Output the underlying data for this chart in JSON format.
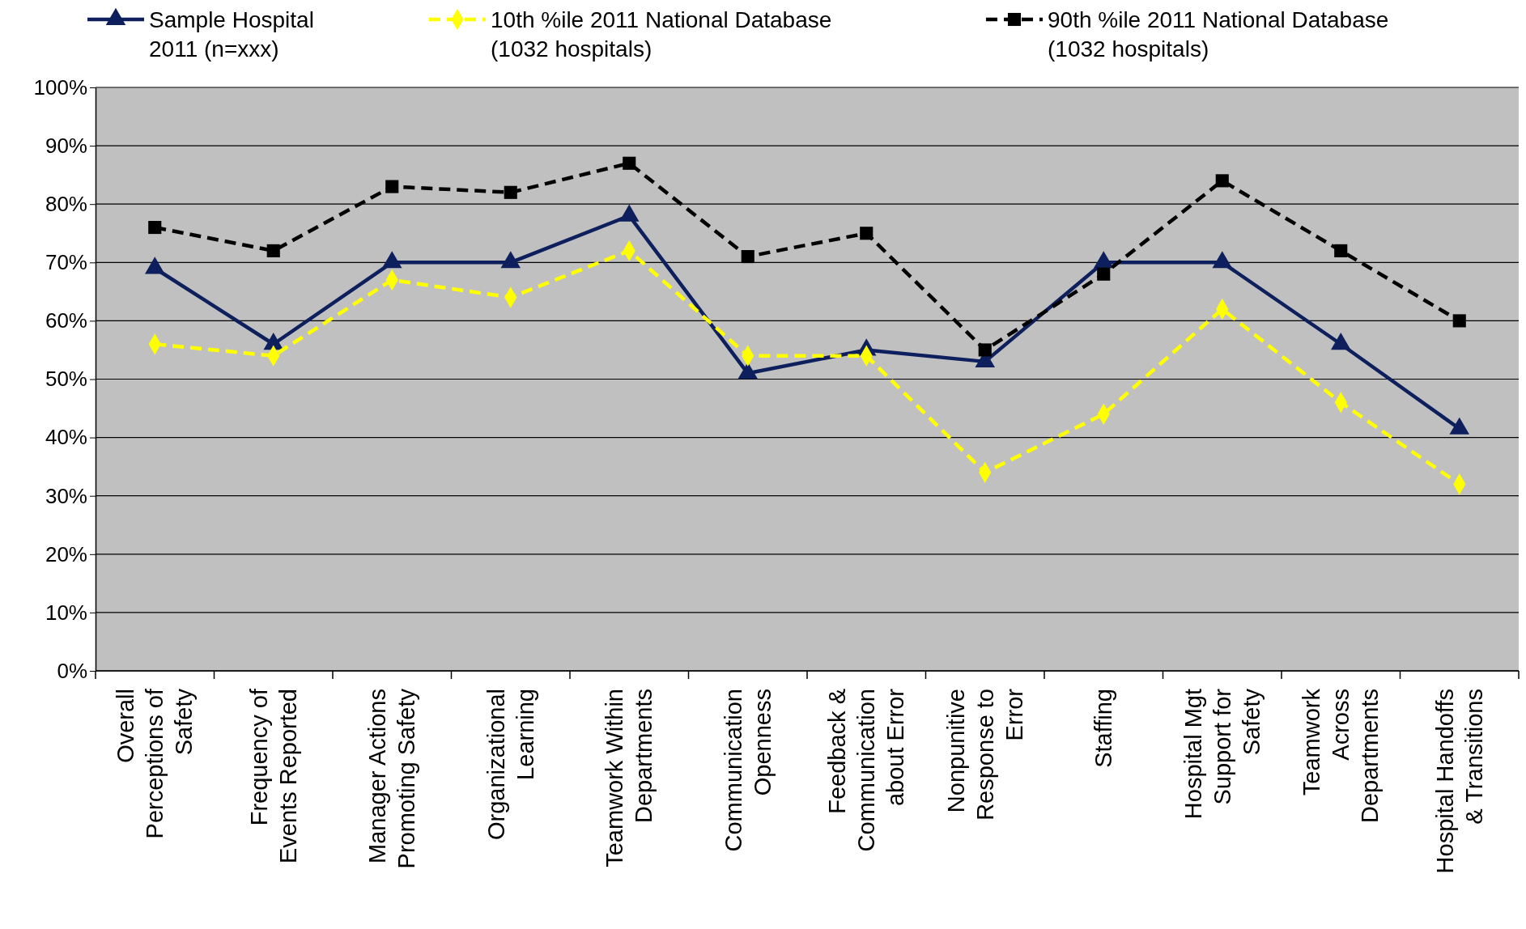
{
  "chart_data": {
    "type": "line",
    "categories": [
      "Overall\nPerceptions of\nSafety",
      "Frequency of\nEvents Reported",
      "Manager Actions\nPromoting  Safety",
      "Organizational\nLearning",
      "Teamwork Within\nDepartments",
      "Communication\nOpenness",
      "Feedback &\nCommunication\nabout Error",
      "Nonpunitive\nResponse to\nError",
      "Staffing",
      "Hospital Mgt\nSupport for\nSafety",
      "Teamwork\nAcross\nDepartments",
      "Hospital Handoffs\n& Transitions"
    ],
    "series": [
      {
        "name": "Sample Hospital\n2011 (n=xxx)",
        "color": "#0d1f5c",
        "marker": "triangle",
        "line_style": "solid",
        "values": [
          69,
          56,
          70,
          70,
          78,
          51,
          55,
          53,
          70,
          70,
          56,
          41.5
        ]
      },
      {
        "name": "10th %ile 2011 National Database\n(1032 hospitals)",
        "color": "#ffff00",
        "marker": "diamond",
        "line_style": "dashed",
        "values": [
          56,
          54,
          67,
          64,
          72,
          54,
          54,
          34,
          44,
          62,
          46,
          32
        ]
      },
      {
        "name": "90th %ile 2011 National Database\n(1032 hospitals)",
        "color": "#000000",
        "marker": "square",
        "line_style": "dashed",
        "values": [
          76,
          72,
          83,
          82,
          87,
          71,
          75,
          55,
          68,
          84,
          72,
          60
        ]
      }
    ],
    "ylim": [
      0,
      100
    ],
    "yticks": [
      {
        "value": 0,
        "label": "0%"
      },
      {
        "value": 10,
        "label": "10%"
      },
      {
        "value": 20,
        "label": "20%"
      },
      {
        "value": 30,
        "label": "30%"
      },
      {
        "value": 40,
        "label": "40%"
      },
      {
        "value": 50,
        "label": "50%"
      },
      {
        "value": 60,
        "label": "60%"
      },
      {
        "value": 70,
        "label": "70%"
      },
      {
        "value": 80,
        "label": "80%"
      },
      {
        "value": 90,
        "label": "90%"
      },
      {
        "value": 100,
        "label": "100%"
      }
    ],
    "grid": "y",
    "legend": "top"
  }
}
